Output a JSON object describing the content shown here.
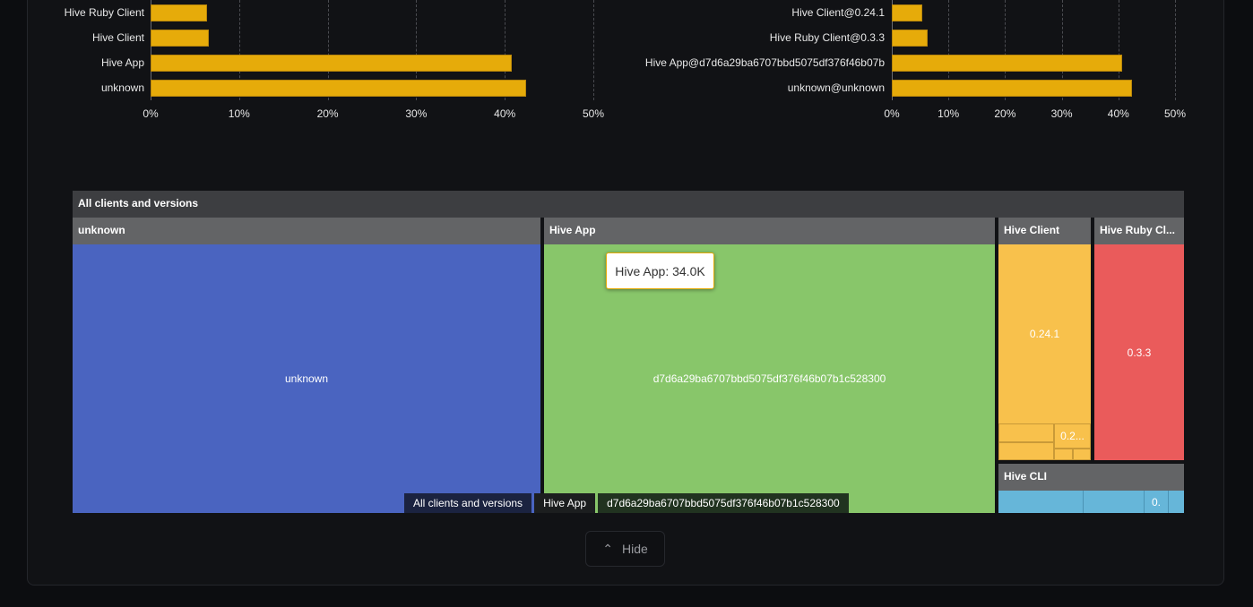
{
  "chart_data": [
    {
      "type": "bar",
      "orientation": "horizontal",
      "categories": [
        "Hive Ruby Client",
        "Hive Client",
        "Hive App",
        "unknown"
      ],
      "values": [
        6.4,
        6.6,
        40.8,
        42.4
      ],
      "xlim": [
        0,
        50
      ],
      "xticks": [
        "0%",
        "10%",
        "20%",
        "30%",
        "40%",
        "50%"
      ],
      "grid": true,
      "bar_color": "#e6ab0a"
    },
    {
      "type": "bar",
      "orientation": "horizontal",
      "categories": [
        "Hive Client@0.24.1",
        "Hive Ruby Client@0.3.3",
        "Hive App@d7d6a29ba6707bbd5075df376f46b07b",
        "unknown@unknown"
      ],
      "values": [
        5.4,
        6.3,
        40.7,
        42.4
      ],
      "xlim": [
        0,
        50
      ],
      "xticks": [
        "0%",
        "10%",
        "20%",
        "30%",
        "40%",
        "50%"
      ],
      "grid": true,
      "bar_color": "#e6ab0a"
    },
    {
      "type": "treemap",
      "root": "All clients and versions",
      "groups": [
        {
          "name": "unknown",
          "color": "#4a64c0",
          "children": [
            "unknown"
          ]
        },
        {
          "name": "Hive App",
          "color": "#88c66a",
          "children": [
            "d7d6a29ba6707bbd5075df376f46b07b1c528300"
          ]
        },
        {
          "name": "Hive Client",
          "color": "#f8c14c",
          "children": [
            "0.24.1",
            "0.2..."
          ]
        },
        {
          "name": "Hive Ruby Cl...",
          "color": "#ea5b5b",
          "children": [
            "0.3.3"
          ]
        },
        {
          "name": "Hive CLI",
          "color": "#66b6d9",
          "children": [
            "0."
          ]
        }
      ],
      "tooltip": "Hive App: 34.0K",
      "breadcrumb": [
        "All clients and versions",
        "Hive App",
        "d7d6a29ba6707bbd5075df376f46b07b1c528300"
      ]
    }
  ],
  "hide_button": {
    "label": "Hide",
    "icon": "chevron-up-icon"
  }
}
